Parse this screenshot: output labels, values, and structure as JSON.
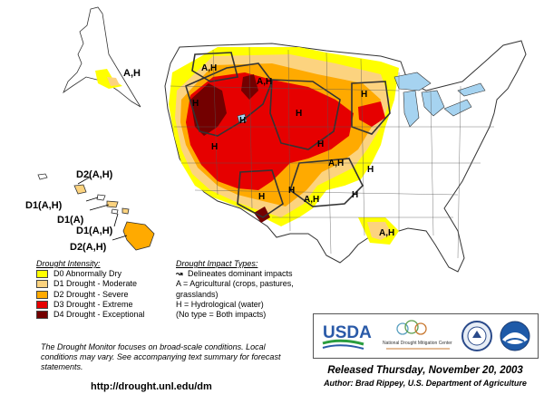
{
  "map_labels": {
    "alaska": "A,H",
    "hawaii_1": "D2(A,H)",
    "hawaii_2": "D1(A,H)",
    "hawaii_3": "D1(A)",
    "hawaii_4": "D1(A,H)",
    "hawaii_5": "D2(A,H)",
    "montana_w": "A,H",
    "montana_e": "A,H",
    "idaho": "H",
    "nevada": "H",
    "utah": "H",
    "dakota": "H",
    "minnesota": "H",
    "nebraska": "H",
    "kansas": "A,H",
    "missouri": "H",
    "arizona": "H",
    "new_mexico": "H",
    "oklahoma": "A,H",
    "arkansas": "H",
    "louisiana": "A,H"
  },
  "legend": {
    "intensity_title": "Drought Intensity:",
    "intensity_items": [
      {
        "label": "D0 Abnormally Dry",
        "color": "#ffff00"
      },
      {
        "label": "D1 Drought - Moderate",
        "color": "#fcd37f"
      },
      {
        "label": "D2 Drought - Severe",
        "color": "#ffaa00"
      },
      {
        "label": "D3 Drought - Extreme",
        "color": "#e60000"
      },
      {
        "label": "D4 Drought - Exceptional",
        "color": "#730000"
      }
    ],
    "impact_title": "Drought Impact Types:",
    "impact_lines": [
      "Delineates dominant impacts",
      "A = Agricultural (crops, pastures,",
      "grasslands)",
      "H = Hydrological (water)",
      "(No type = Both impacts)"
    ],
    "arrow_symbol": "↝"
  },
  "note": "The Drought Monitor focuses on broad-scale conditions. Local conditions may vary.  See accompanying text summary for forecast statements.",
  "url": "http://drought.unl.edu/dm",
  "released": "Released Thursday, November 20, 2003",
  "author": "Author:  Brad Rippey, U.S. Department of Agriculture",
  "logos": {
    "usda": "USDA",
    "ndmc": "National Drought Mitigation Center"
  },
  "colors": {
    "d0": "#ffff00",
    "d1": "#fcd37f",
    "d2": "#ffaa00",
    "d3": "#e60000",
    "d4": "#730000",
    "water": "#a6d3f0"
  }
}
